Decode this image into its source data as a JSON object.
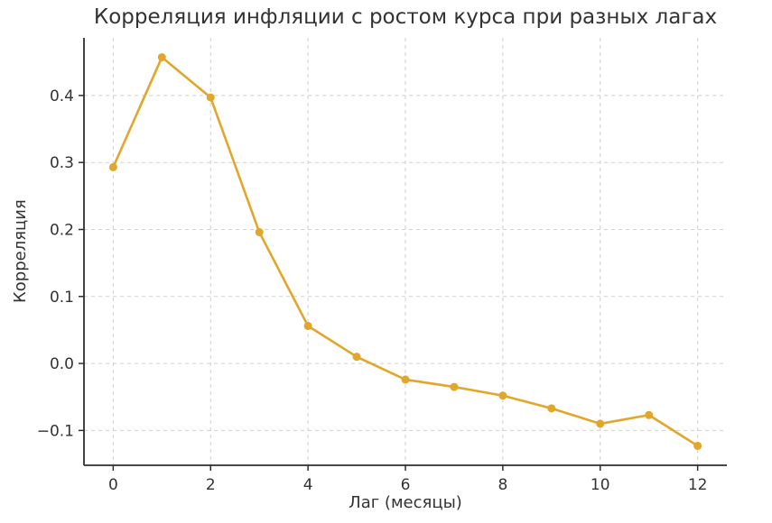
{
  "figure": {
    "background": "#ffffff"
  },
  "chart_data": {
    "type": "line",
    "title": "Корреляция инфляции с ростом курса при разных лагах",
    "xlabel": "Лаг (месяцы)",
    "ylabel": "Корреляция",
    "series": [
      {
        "name": "Корреляция инфляции с ростом курса",
        "x": [
          0,
          1,
          2,
          3,
          4,
          5,
          6,
          7,
          8,
          9,
          10,
          11,
          12
        ],
        "values": [
          0.293,
          0.457,
          0.397,
          0.196,
          0.056,
          0.01,
          -0.024,
          -0.035,
          -0.048,
          -0.067,
          -0.09,
          -0.077,
          -0.123
        ]
      }
    ],
    "xlim": [
      -0.6,
      12.6
    ],
    "ylim": [
      -0.152,
      0.486
    ],
    "xticks": [
      0,
      2,
      4,
      6,
      8,
      10,
      12
    ],
    "xtick_labels": [
      "0",
      "2",
      "4",
      "6",
      "8",
      "10",
      "12"
    ],
    "yticks": [
      -0.1,
      0.0,
      0.1,
      0.2,
      0.3,
      0.4
    ],
    "ytick_labels": [
      "−0.1",
      "0.0",
      "0.1",
      "0.2",
      "0.3",
      "0.4"
    ],
    "grid": true,
    "grid_style": "dashed",
    "legend": false,
    "marker": "circle",
    "marker_diameter": 9,
    "line_width": 2.6,
    "colors": {
      "line": "#E2A62A",
      "grid": "#cfcfcf",
      "axis": "#2e2e2e",
      "tick_text": "#333333"
    }
  }
}
